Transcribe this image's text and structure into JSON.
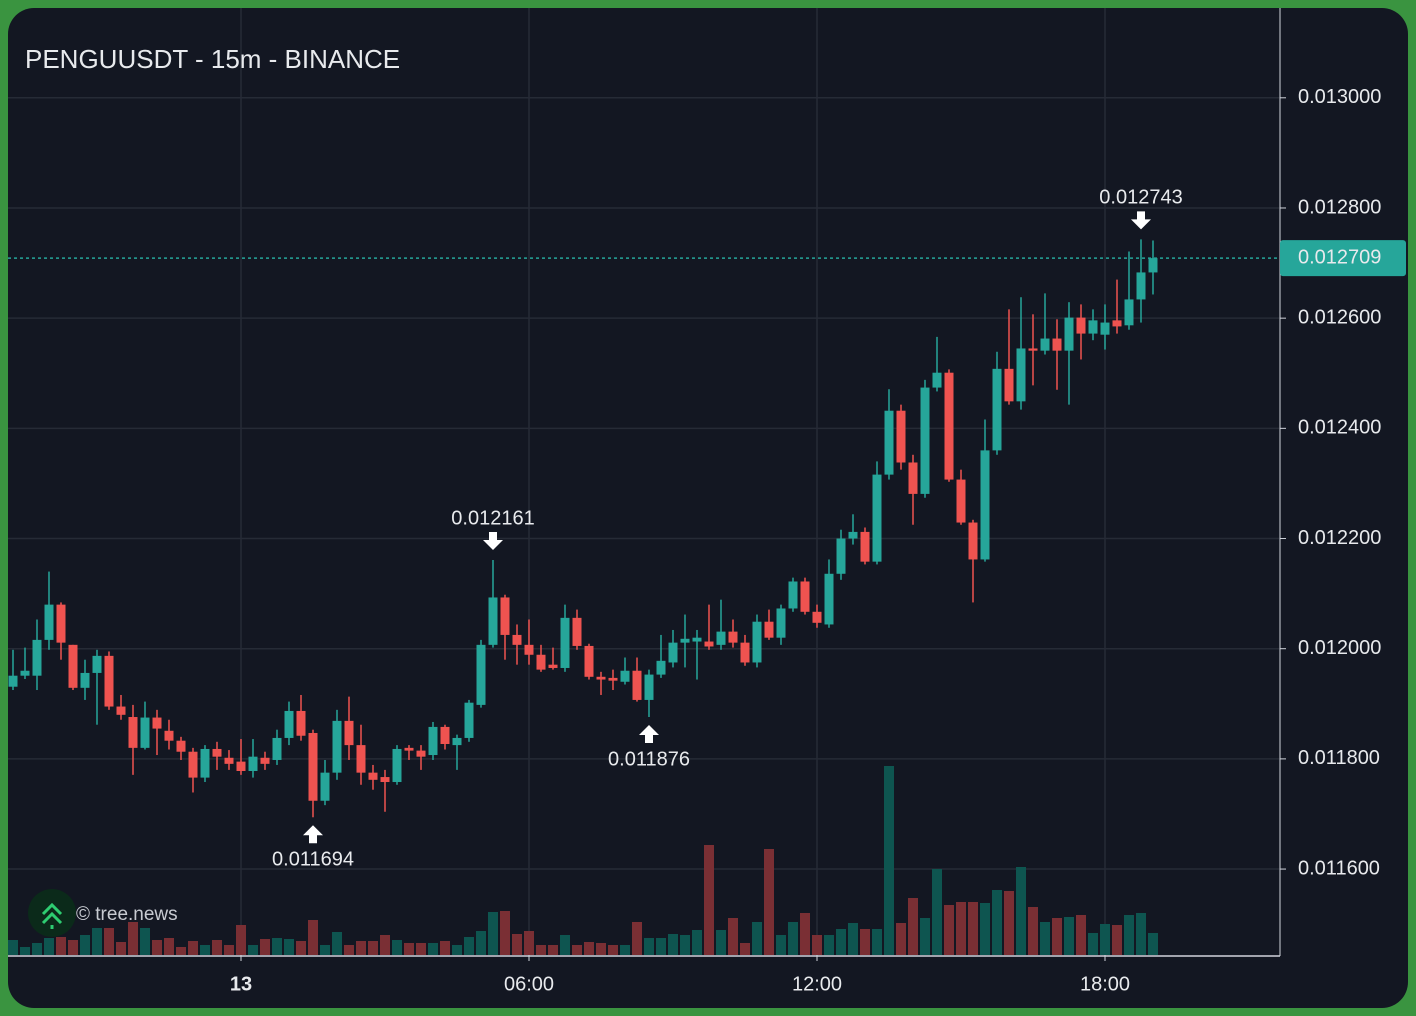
{
  "chart_data": {
    "type": "candlestick",
    "title": "PENGUUSDT - 15m - BINANCE",
    "watermark": "© tree.news",
    "categories": [
      null,
      null,
      null,
      null,
      null,
      null,
      null,
      null,
      null,
      null,
      null,
      null,
      null,
      null,
      null,
      null,
      null,
      null,
      null,
      "13",
      null,
      null,
      null,
      null,
      null,
      null,
      null,
      null,
      null,
      null,
      null,
      null,
      null,
      null,
      null,
      null,
      null,
      null,
      null,
      null,
      null,
      null,
      null,
      "06:00",
      null,
      null,
      null,
      null,
      null,
      null,
      null,
      null,
      null,
      null,
      null,
      null,
      null,
      null,
      null,
      null,
      null,
      null,
      null,
      null,
      null,
      null,
      null,
      "12:00",
      null,
      null,
      null,
      null,
      null,
      null,
      null,
      null,
      null,
      null,
      null,
      null,
      null,
      null,
      null,
      null,
      null,
      null,
      null,
      null,
      null,
      null,
      null,
      "18:00",
      null,
      null,
      null,
      null
    ],
    "open": [
      0.011931,
      0.011951,
      0.011951,
      0.012016,
      0.01208,
      0.012007,
      0.011929,
      0.011956,
      0.011987,
      0.011895,
      0.011876,
      0.01182,
      0.011875,
      0.011851,
      0.011833,
      0.011813,
      0.011766,
      0.011818,
      0.011802,
      0.011795,
      0.011778,
      0.011802,
      0.011798,
      0.011838,
      0.011887,
      0.011847,
      0.011724,
      0.011775,
      0.011869,
      0.011825,
      0.011775,
      0.011767,
      0.011758,
      0.01182,
      0.011815,
      0.011807,
      0.011858,
      0.011825,
      0.011838,
      0.011898,
      0.012007,
      0.012093,
      0.012025,
      0.012007,
      0.011989,
      0.011971,
      0.011965,
      0.012056,
      0.012005,
      0.011949,
      0.011947,
      0.01194,
      0.01196,
      0.011907,
      0.011953,
      0.011975,
      0.012011,
      0.012013,
      0.012013,
      0.012007,
      0.012031,
      0.012011,
      0.011975,
      0.012049,
      0.01202,
      0.012073,
      0.012122,
      0.012067,
      0.012044,
      0.012136,
      0.0122,
      0.012212,
      0.012158,
      0.012316,
      0.012432,
      0.012338,
      0.012281,
      0.012474,
      0.012501,
      0.012307,
      0.012229,
      0.012162,
      0.01236,
      0.012508,
      0.012449,
      0.012545,
      0.012541,
      0.012563,
      0.012541,
      0.012601,
      0.012572,
      0.01257,
      0.012596,
      0.012587,
      0.012634,
      0.012683
    ],
    "high": [
      0.011998,
      0.012002,
      0.012053,
      0.01214,
      0.012084,
      0.012007,
      0.01198,
      0.011998,
      0.011995,
      0.011916,
      0.011898,
      0.011904,
      0.011889,
      0.011871,
      0.01184,
      0.01182,
      0.011825,
      0.011831,
      0.011816,
      0.011836,
      0.011836,
      0.011813,
      0.011853,
      0.011904,
      0.011916,
      0.011853,
      0.011798,
      0.011889,
      0.011913,
      0.011862,
      0.011789,
      0.01178,
      0.011825,
      0.011825,
      0.011825,
      0.011867,
      0.011862,
      0.011844,
      0.011907,
      0.012016,
      0.012161,
      0.012098,
      0.012044,
      0.012053,
      0.012007,
      0.012002,
      0.01208,
      0.012071,
      0.012009,
      0.011958,
      0.011962,
      0.011984,
      0.011984,
      0.011962,
      0.012025,
      0.012034,
      0.012062,
      0.012034,
      0.01208,
      0.012089,
      0.012053,
      0.012025,
      0.012062,
      0.012071,
      0.01208,
      0.012129,
      0.012129,
      0.01208,
      0.012162,
      0.012216,
      0.012244,
      0.01222,
      0.01234,
      0.012471,
      0.012443,
      0.012352,
      0.012488,
      0.012566,
      0.012507,
      0.012325,
      0.012234,
      0.012416,
      0.012539,
      0.012616,
      0.012638,
      0.012607,
      0.012645,
      0.012598,
      0.012629,
      0.012625,
      0.012616,
      0.012625,
      0.01267,
      0.012721,
      0.012743,
      0.012741
    ],
    "low": [
      0.011925,
      0.011945,
      0.011925,
      0.011998,
      0.01198,
      0.011925,
      0.011907,
      0.011862,
      0.011889,
      0.011871,
      0.011771,
      0.011817,
      0.011807,
      0.011817,
      0.011798,
      0.011739,
      0.011758,
      0.01178,
      0.01178,
      0.011771,
      0.011766,
      0.01178,
      0.011789,
      0.011825,
      0.011833,
      0.011694,
      0.011716,
      0.011762,
      0.011798,
      0.011753,
      0.011744,
      0.011704,
      0.011753,
      0.011798,
      0.01178,
      0.011798,
      0.011817,
      0.01178,
      0.011831,
      0.011893,
      0.012002,
      0.01198,
      0.011971,
      0.011971,
      0.011958,
      0.011962,
      0.011958,
      0.011998,
      0.011944,
      0.011916,
      0.011925,
      0.011935,
      0.011904,
      0.011876,
      0.011947,
      0.011966,
      0.011966,
      0.011944,
      0.011998,
      0.011998,
      0.012002,
      0.011969,
      0.011966,
      0.012016,
      0.012007,
      0.012067,
      0.012062,
      0.012038,
      0.012038,
      0.012125,
      0.012189,
      0.012153,
      0.012153,
      0.012307,
      0.012325,
      0.012225,
      0.012274,
      0.012467,
      0.012303,
      0.012225,
      0.012084,
      0.012158,
      0.012352,
      0.012443,
      0.012434,
      0.012478,
      0.012534,
      0.01247,
      0.012443,
      0.012525,
      0.01256,
      0.012543,
      0.012572,
      0.012579,
      0.012592,
      0.012643
    ],
    "close": [
      0.011951,
      0.01196,
      0.012016,
      0.01208,
      0.012011,
      0.011929,
      0.011956,
      0.011987,
      0.011895,
      0.01188,
      0.01182,
      0.011875,
      0.011855,
      0.011833,
      0.011813,
      0.011766,
      0.011818,
      0.011804,
      0.011791,
      0.011778,
      0.011804,
      0.011791,
      0.011838,
      0.011887,
      0.011842,
      0.011724,
      0.011775,
      0.011869,
      0.011825,
      0.011775,
      0.011762,
      0.011758,
      0.011818,
      0.011815,
      0.011804,
      0.011858,
      0.011827,
      0.011838,
      0.011902,
      0.012007,
      0.012093,
      0.012025,
      0.012007,
      0.011989,
      0.011962,
      0.011965,
      0.012056,
      0.012005,
      0.011949,
      0.011944,
      0.011942,
      0.01196,
      0.011907,
      0.011953,
      0.011978,
      0.012011,
      0.012018,
      0.01202,
      0.012004,
      0.012031,
      0.012011,
      0.011975,
      0.012049,
      0.01202,
      0.012073,
      0.012122,
      0.012067,
      0.012047,
      0.012136,
      0.0122,
      0.012212,
      0.012158,
      0.012316,
      0.012432,
      0.012338,
      0.012281,
      0.012474,
      0.012501,
      0.012307,
      0.012229,
      0.012162,
      0.01236,
      0.012508,
      0.012449,
      0.012545,
      0.012541,
      0.012563,
      0.012541,
      0.012601,
      0.012572,
      0.012596,
      0.012592,
      0.012585,
      0.012634,
      0.012683,
      0.012709
    ],
    "volume": [
      15,
      8,
      12,
      17,
      18,
      15,
      20,
      27,
      27,
      13,
      33,
      27,
      15,
      17,
      8,
      14,
      10,
      15,
      10,
      30,
      10,
      16,
      17,
      16,
      14,
      35,
      10,
      23,
      10,
      14,
      14,
      20,
      15,
      12,
      12,
      12,
      14,
      10,
      18,
      24,
      43,
      44,
      21,
      24,
      10,
      10,
      20,
      10,
      13,
      12,
      10,
      10,
      33,
      17,
      17,
      21,
      20,
      25,
      110,
      25,
      37,
      12,
      33,
      106,
      20,
      33,
      42,
      20,
      20,
      26,
      32,
      26,
      26,
      189,
      32,
      57,
      37,
      86,
      50,
      53,
      53,
      52,
      65,
      64,
      88,
      48,
      33,
      37,
      38,
      40,
      22,
      31,
      30,
      40,
      42,
      22
    ],
    "vlim": [
      0,
      947
    ],
    "up_color": "#26a69a",
    "down_color": "#ef5350",
    "volume_up_color": "#0e5550",
    "volume_down_color": "#7a2f34",
    "last_price": 0.012709,
    "high_labels": [
      0.012161,
      0.012743
    ],
    "low_labels": [
      0.011694,
      0.011876
    ],
    "ylim": [
      0.011444,
      0.013163
    ],
    "yticks": [
      {
        "value": 0.0116,
        "label": "0.011600"
      },
      {
        "value": 0.0118,
        "label": "0.011800"
      },
      {
        "value": 0.012,
        "label": "0.012000"
      },
      {
        "value": 0.0122,
        "label": "0.012200"
      },
      {
        "value": 0.0124,
        "label": "0.012400"
      },
      {
        "value": 0.0126,
        "label": "0.012600"
      },
      {
        "value": 0.0128,
        "label": "0.012800"
      },
      {
        "value": 0.013,
        "label": "0.013000"
      }
    ],
    "grid": true
  }
}
